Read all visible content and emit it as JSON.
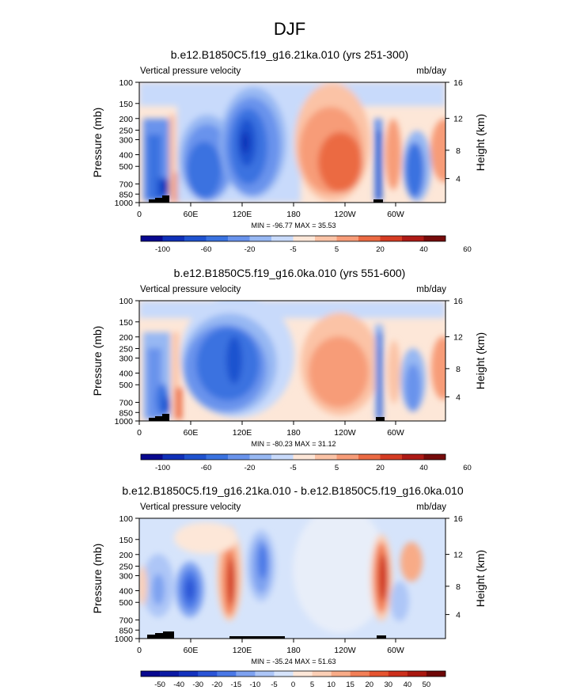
{
  "page": {
    "title": "DJF"
  },
  "palettes": {
    "blue_red_13": [
      "#08088f",
      "#0f30b8",
      "#1f52cf",
      "#3a72e0",
      "#6993ec",
      "#97b8f3",
      "#c8dafb",
      "#fde7d8",
      "#fbc3a6",
      "#f79c78",
      "#eb6a43",
      "#d53c23",
      "#ae1a16",
      "#760b0b"
    ],
    "diff_16": [
      "#08088f",
      "#0b1aa4",
      "#1432be",
      "#2a54d6",
      "#4a78e6",
      "#7ea2f0",
      "#adc6f7",
      "#d6e4fb",
      "#fde7d8",
      "#fbcfb6",
      "#f8ab87",
      "#f27f57",
      "#e55430",
      "#cc2f1c",
      "#a9170f",
      "#6f0707"
    ]
  },
  "chart_data": [
    {
      "type": "heatmap",
      "title": "b.e12.B1850C5.f19_g16.21ka.010 (yrs 251-300)",
      "left_label": "Vertical pressure velocity",
      "right_label": "mb/day",
      "xlabel": "",
      "ylabel": "Pressure (mb)",
      "ylabel_right": "Height (km)",
      "x_ticks": [
        "0",
        "60E",
        "120E",
        "180",
        "120W",
        "60W"
      ],
      "y_ticks": [
        "100",
        "150",
        "200",
        "250",
        "300",
        "400",
        "500",
        "700",
        "850",
        "1000"
      ],
      "y_right_ticks": [
        "16",
        "12",
        "8",
        "4"
      ],
      "stats": "MIN = -96.77  MAX = 35.53",
      "colorbar_levels": [
        "-100",
        "-60",
        "-20",
        "-5",
        "5",
        "20",
        "40",
        "60"
      ],
      "palette": "blue_red_13"
    },
    {
      "type": "heatmap",
      "title": "b.e12.B1850C5.f19_g16.0ka.010 (yrs 551-600)",
      "left_label": "Vertical pressure velocity",
      "right_label": "mb/day",
      "xlabel": "",
      "ylabel": "Pressure (mb)",
      "ylabel_right": "Height (km)",
      "x_ticks": [
        "0",
        "60E",
        "120E",
        "180",
        "120W",
        "60W"
      ],
      "y_ticks": [
        "100",
        "150",
        "200",
        "250",
        "300",
        "400",
        "500",
        "700",
        "850",
        "1000"
      ],
      "y_right_ticks": [
        "16",
        "12",
        "8",
        "4"
      ],
      "stats": "MIN = -80.23  MAX = 31.12",
      "colorbar_levels": [
        "-100",
        "-60",
        "-20",
        "-5",
        "5",
        "20",
        "40",
        "60"
      ],
      "palette": "blue_red_13"
    },
    {
      "type": "heatmap",
      "title": "b.e12.B1850C5.f19_g16.21ka.010 - b.e12.B1850C5.f19_g16.0ka.010",
      "left_label": "Vertical pressure velocity",
      "right_label": "mb/day",
      "xlabel": "",
      "ylabel": "Pressure (mb)",
      "ylabel_right": "Height (km)",
      "x_ticks": [
        "0",
        "60E",
        "120E",
        "180",
        "120W",
        "60W"
      ],
      "y_ticks": [
        "100",
        "150",
        "200",
        "250",
        "300",
        "400",
        "500",
        "700",
        "850",
        "1000"
      ],
      "y_right_ticks": [
        "16",
        "12",
        "8",
        "4"
      ],
      "stats": "MIN = -35.24  MAX = 51.63",
      "colorbar_levels": [
        "-50",
        "-40",
        "-30",
        "-20",
        "-15",
        "-10",
        "-5",
        "0",
        "5",
        "10",
        "15",
        "20",
        "30",
        "40",
        "50"
      ],
      "palette": "diff_16"
    }
  ]
}
